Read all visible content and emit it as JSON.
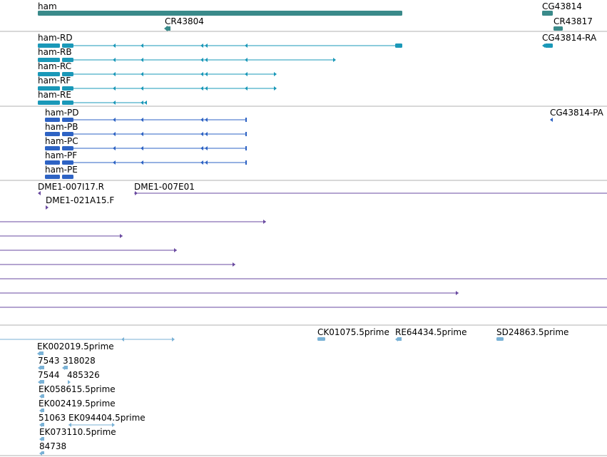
{
  "colors": {
    "gene": "#3a8a8a",
    "ncrna": "#3a8a8a",
    "transcript": "#1a98b8",
    "translation": "#2e63c4",
    "cdna": "#6a4aa0",
    "est": "#7ab2d6",
    "divider": "#b0b0b0"
  },
  "tracks": {
    "genes": {
      "labels": [
        "ham",
        "CR43804",
        "CG43814",
        "CR43817"
      ]
    },
    "transcripts": {
      "labels": [
        "ham-RD",
        "ham-RB",
        "ham-RC",
        "ham-RF",
        "ham-RE",
        "CG43814-RA"
      ]
    },
    "translations": {
      "labels": [
        "ham-PD",
        "ham-PB",
        "ham-PC",
        "ham-PF",
        "ham-PE",
        "CG43814-PA"
      ]
    },
    "cdna": {
      "labels": [
        "DME1-007I17.R",
        "DME1-007E01",
        "DME1-021A15.F"
      ]
    },
    "est": {
      "labels": [
        "CK01075.5prime",
        "RE64434.5prime",
        "SD24863.5prime",
        "EK002019.5prime",
        "7543",
        "318028",
        "7544",
        "485326",
        "EK058615.5prime",
        "EK002419.5prime",
        "51063",
        "EK094404.5prime",
        "EK073110.5prime",
        "84738"
      ]
    }
  }
}
